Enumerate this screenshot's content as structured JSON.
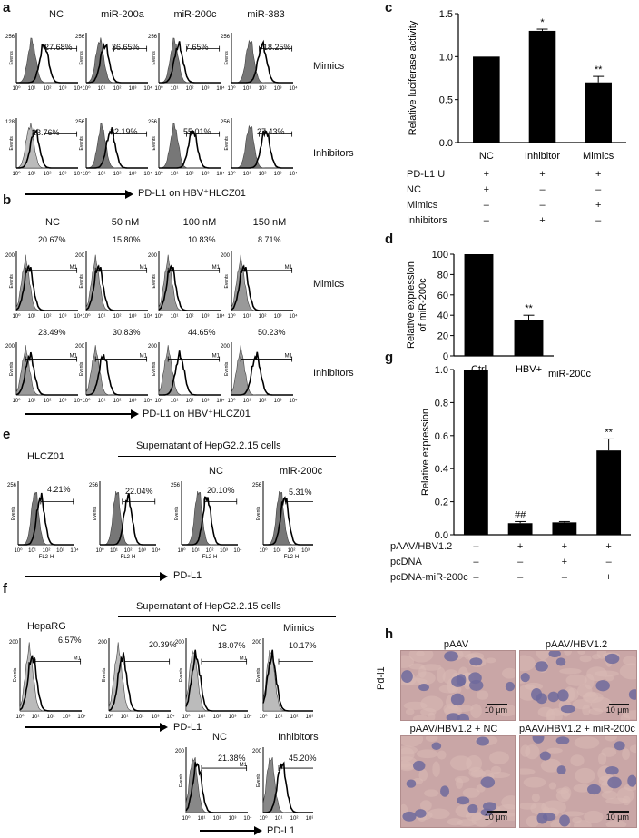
{
  "panels": {
    "a": "a",
    "b": "b",
    "c": "c",
    "d": "d",
    "e": "e",
    "f": "f",
    "g": "g",
    "h": "h"
  },
  "a": {
    "cols": [
      "NC",
      "miR-200a",
      "miR-200c",
      "miR-383"
    ],
    "row_mimics": "Mimics",
    "row_inhibitors": "Inhibitors",
    "mimics_pct": [
      "27.68%",
      "36.65%",
      "7.65%",
      "18.25%"
    ],
    "inhib_pct": [
      "23.76%",
      "22.19%",
      "55.01%",
      "27.43%"
    ],
    "arrow_label": "PD-L1 on HBV⁺HLCZ01",
    "y_label": "Events",
    "y_max_top": "256",
    "y_max_bot": "128",
    "x_ticks": [
      "10⁰",
      "10¹",
      "10²",
      "10³",
      "10⁴"
    ]
  },
  "b": {
    "cols": [
      "NC",
      "50 nM",
      "100 nM",
      "150 nM"
    ],
    "row_mimics": "Mimics",
    "row_inhibitors": "Inhibitors",
    "mimics_pct": [
      "20.67%",
      "15.80%",
      "10.83%",
      "8.71%"
    ],
    "inhib_pct": [
      "23.49%",
      "30.83%",
      "44.65%",
      "50.23%"
    ],
    "gate": "M1",
    "arrow_label": "PD-L1 on HBV⁺HLCZ01",
    "y_max": "200"
  },
  "c": {
    "ylabel": "Relative luciferase activity",
    "yticks": [
      "0.0",
      "0.5",
      "1.0",
      "1.5"
    ],
    "table_rows": [
      {
        "label": "PD-L1 U",
        "vals": [
          "+",
          "+",
          "+"
        ]
      },
      {
        "label": "NC",
        "vals": [
          "+",
          "–",
          "–"
        ]
      },
      {
        "label": "Mimics",
        "vals": [
          "–",
          "–",
          "+"
        ]
      },
      {
        "label": "Inhibitors",
        "vals": [
          "–",
          "+",
          "–"
        ]
      }
    ],
    "sig": [
      "",
      "*",
      "**"
    ]
  },
  "d": {
    "ylabel_line1": "Relative expression",
    "ylabel_line2": "of miR-200c",
    "yticks": [
      "0",
      "20",
      "40",
      "60",
      "80",
      "100"
    ],
    "sig": [
      "",
      "**"
    ]
  },
  "e": {
    "left_title": "HLCZ01",
    "group_title": "Supernatant of HepG2.2.15 cells",
    "sub": [
      "NC",
      "miR-200c"
    ],
    "pct": [
      "4.21%",
      "22.04%",
      "20.10%",
      "5.31%"
    ],
    "x_axis": "FL2-H",
    "arrow_label": "PD-L1"
  },
  "f": {
    "left_title": "HepaRG",
    "group_title": "Supernatant of HepG2.2.15 cells",
    "sub_top": [
      "NC",
      "Mimics"
    ],
    "sub_bot": [
      "NC",
      "Inhibitors"
    ],
    "pct_top": [
      "6.57%",
      "20.39%",
      "18.07%",
      "10.17%"
    ],
    "pct_bot": [
      "21.38%",
      "45.20%"
    ],
    "arrow_label": "PD-L1"
  },
  "g": {
    "title": "miR-200c",
    "ylabel": "Relative expression",
    "yticks": [
      "0.0",
      "0.2",
      "0.4",
      "0.6",
      "0.8",
      "1.0"
    ],
    "sig": [
      "",
      "##",
      "",
      "**"
    ],
    "table_rows": [
      {
        "label": "pAAV/HBV1.2",
        "vals": [
          "–",
          "+",
          "+",
          "+"
        ]
      },
      {
        "label": "pcDNA",
        "vals": [
          "–",
          "–",
          "+",
          "–"
        ]
      },
      {
        "label": "pcDNA-miR-200c",
        "vals": [
          "–",
          "–",
          "–",
          "+"
        ]
      }
    ]
  },
  "h": {
    "row_label": "Pd-l1",
    "titles": [
      "pAAV",
      "pAAV/HBV1.2",
      "pAAV/HBV1.2 + NC",
      "pAAV/HBV1.2 + miR-200c"
    ],
    "scale": "10 μm"
  },
  "chart_data": [
    {
      "type": "bar",
      "panel": "c",
      "categories": [
        "NC",
        "Inhibitor",
        "Mimics"
      ],
      "values": [
        1.0,
        1.3,
        0.7
      ],
      "errors": [
        0,
        0.02,
        0.07
      ],
      "ylabel": "Relative luciferase activity",
      "ylim": [
        0,
        1.5
      ]
    },
    {
      "type": "bar",
      "panel": "d",
      "categories": [
        "Ctrl",
        "HBV+"
      ],
      "values": [
        100,
        35
      ],
      "errors": [
        0,
        5
      ],
      "ylabel": "Relative expression of miR-200c",
      "ylim": [
        0,
        100
      ]
    },
    {
      "type": "bar",
      "panel": "g",
      "categories": [
        "1",
        "2",
        "3",
        "4"
      ],
      "values": [
        1.0,
        0.07,
        0.075,
        0.51
      ],
      "errors": [
        0,
        0.01,
        0.005,
        0.07
      ],
      "title": "miR-200c",
      "ylabel": "Relative expression",
      "ylim": [
        0,
        1.0
      ]
    }
  ]
}
